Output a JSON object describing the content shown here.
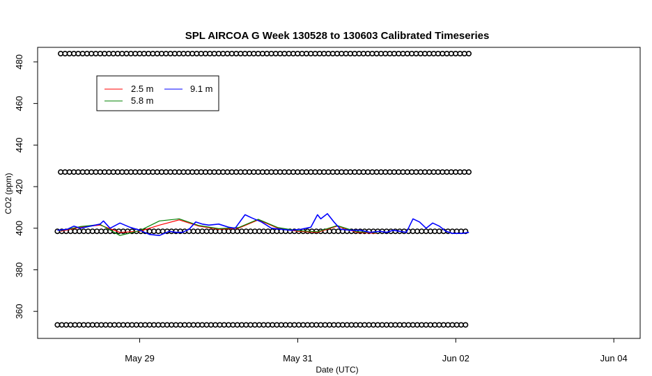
{
  "chart_data": {
    "type": "line",
    "title": "SPL AIRCOA G  Week 130528 to 130603  Calibrated Timeseries",
    "xlabel": "Date (UTC)",
    "ylabel": "CO2 (ppm)",
    "xlim": [
      "2013-05-27T17:00",
      "2013-06-04T08:00"
    ],
    "ylim": [
      347,
      487
    ],
    "x_ticks": [
      {
        "date": "2013-05-29T00:00",
        "label": "May 29"
      },
      {
        "date": "2013-05-31T00:00",
        "label": "May 31"
      },
      {
        "date": "2013-06-02T00:00",
        "label": "Jun 02"
      },
      {
        "date": "2013-06-04T00:00",
        "label": "Jun 04"
      }
    ],
    "y_ticks": [
      360,
      380,
      400,
      420,
      440,
      460,
      480
    ],
    "grid": false,
    "legend": {
      "placement": "top-left"
    },
    "series": [
      {
        "name": "2.5 m",
        "color": "#ff0000",
        "points": [
          [
            "2013-05-28T00:00",
            398.5
          ],
          [
            "2013-05-28T06:00",
            400.5
          ],
          [
            "2013-05-28T12:00",
            401.5
          ],
          [
            "2013-05-28T18:00",
            398.0
          ],
          [
            "2013-05-29T00:00",
            398.5
          ],
          [
            "2013-05-29T06:00",
            401.5
          ],
          [
            "2013-05-29T12:00",
            404.0
          ],
          [
            "2013-05-29T18:00",
            401.0
          ],
          [
            "2013-05-30T00:00",
            399.5
          ],
          [
            "2013-05-30T06:00",
            400.0
          ],
          [
            "2013-05-30T12:00",
            404.0
          ],
          [
            "2013-05-30T18:00",
            400.0
          ],
          [
            "2013-05-31T00:00",
            398.5
          ],
          [
            "2013-05-31T06:00",
            398.0
          ],
          [
            "2013-05-31T12:00",
            401.0
          ],
          [
            "2013-05-31T18:00",
            398.0
          ],
          [
            "2013-06-01T00:00",
            397.5
          ]
        ]
      },
      {
        "name": "5.8 m",
        "color": "#008000",
        "points": [
          [
            "2013-05-28T00:00",
            398.8
          ],
          [
            "2013-05-28T06:00",
            400.8
          ],
          [
            "2013-05-28T12:00",
            401.8
          ],
          [
            "2013-05-28T18:00",
            396.5
          ],
          [
            "2013-05-29T00:00",
            398.8
          ],
          [
            "2013-05-29T06:00",
            403.5
          ],
          [
            "2013-05-29T12:00",
            404.5
          ],
          [
            "2013-05-29T18:00",
            401.3
          ],
          [
            "2013-05-30T00:00",
            399.8
          ],
          [
            "2013-05-30T06:00",
            400.3
          ],
          [
            "2013-05-30T12:00",
            404.3
          ],
          [
            "2013-05-30T18:00",
            400.3
          ],
          [
            "2013-05-31T00:00",
            398.8
          ],
          [
            "2013-05-31T06:00",
            398.3
          ],
          [
            "2013-05-31T12:00",
            401.3
          ],
          [
            "2013-05-31T18:00",
            398.3
          ],
          [
            "2013-06-01T00:00",
            397.8
          ]
        ]
      },
      {
        "name": "9.1 m",
        "color": "#0000ff",
        "points": [
          [
            "2013-05-27T23:00",
            399.0
          ],
          [
            "2013-05-28T02:00",
            399.5
          ],
          [
            "2013-05-28T04:00",
            401.0
          ],
          [
            "2013-05-28T06:00",
            400.0
          ],
          [
            "2013-05-28T09:00",
            401.0
          ],
          [
            "2013-05-28T12:00",
            402.0
          ],
          [
            "2013-05-28T13:00",
            403.5
          ],
          [
            "2013-05-28T15:00",
            400.0
          ],
          [
            "2013-05-28T18:00",
            402.5
          ],
          [
            "2013-05-28T21:00",
            400.5
          ],
          [
            "2013-05-29T00:00",
            399.0
          ],
          [
            "2013-05-29T03:00",
            397.0
          ],
          [
            "2013-05-29T06:00",
            396.5
          ],
          [
            "2013-05-29T09:00",
            398.5
          ],
          [
            "2013-05-29T11:00",
            398.0
          ],
          [
            "2013-05-29T13:00",
            398.0
          ],
          [
            "2013-05-29T15:00",
            399.5
          ],
          [
            "2013-05-29T17:00",
            403.0
          ],
          [
            "2013-05-29T19:00",
            402.0
          ],
          [
            "2013-05-29T21:00",
            401.5
          ],
          [
            "2013-05-30T00:00",
            402.0
          ],
          [
            "2013-05-30T03:00",
            400.5
          ],
          [
            "2013-05-30T05:00",
            400.0
          ],
          [
            "2013-05-30T08:00",
            406.5
          ],
          [
            "2013-05-30T10:00",
            405.0
          ],
          [
            "2013-05-30T13:00",
            403.0
          ],
          [
            "2013-05-30T16:00",
            400.0
          ],
          [
            "2013-05-30T19:00",
            399.5
          ],
          [
            "2013-05-30T22:00",
            399.0
          ],
          [
            "2013-05-31T01:00",
            399.5
          ],
          [
            "2013-05-31T04:00",
            400.5
          ],
          [
            "2013-05-31T06:00",
            406.5
          ],
          [
            "2013-05-31T07:00",
            404.5
          ],
          [
            "2013-05-31T09:00",
            407.0
          ],
          [
            "2013-05-31T11:00",
            403.0
          ],
          [
            "2013-05-31T13:00",
            399.5
          ],
          [
            "2013-05-31T16:00",
            399.0
          ],
          [
            "2013-05-31T19:00",
            399.0
          ],
          [
            "2013-05-31T22:00",
            398.0
          ],
          [
            "2013-06-01T01:00",
            398.5
          ],
          [
            "2013-06-01T03:00",
            398.0
          ],
          [
            "2013-06-01T05:00",
            399.0
          ],
          [
            "2013-06-01T07:00",
            398.5
          ],
          [
            "2013-06-01T09:00",
            398.0
          ],
          [
            "2013-06-01T11:00",
            404.5
          ],
          [
            "2013-06-01T13:00",
            403.0
          ],
          [
            "2013-06-01T15:00",
            400.0
          ],
          [
            "2013-06-01T17:00",
            402.5
          ],
          [
            "2013-06-01T19:00",
            401.0
          ],
          [
            "2013-06-01T21:00",
            398.5
          ],
          [
            "2013-06-01T23:00",
            397.5
          ],
          [
            "2013-06-02T02:00",
            397.5
          ],
          [
            "2013-06-02T04:00",
            398.0
          ]
        ]
      }
    ],
    "reference_points": {
      "marker": "open-circle",
      "color": "#000000",
      "levels": [
        {
          "y": 484,
          "x_start": "2013-05-28T00:00",
          "x_end": "2013-06-02T04:00"
        },
        {
          "y": 427,
          "x_start": "2013-05-28T00:00",
          "x_end": "2013-06-02T04:00"
        },
        {
          "y": 398.5,
          "x_start": "2013-05-27T23:00",
          "x_end": "2013-06-02T04:00"
        },
        {
          "y": 353.5,
          "x_start": "2013-05-27T23:00",
          "x_end": "2013-06-02T04:00"
        }
      ]
    }
  }
}
